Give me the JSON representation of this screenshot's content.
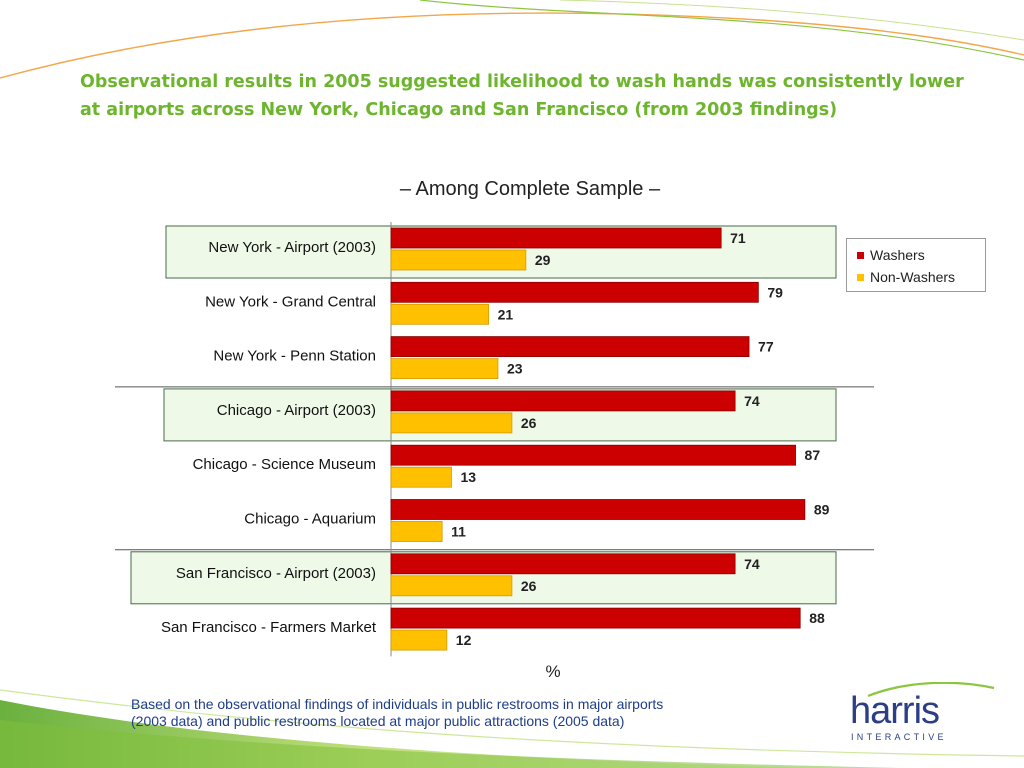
{
  "header": {
    "title": "Observational results in 2005 suggested likelihood to wash hands was consistently lower at airports across New York, Chicago and San Francisco (from 2003 findings)"
  },
  "chart_data": {
    "type": "bar",
    "orientation": "horizontal",
    "title": "– Among Complete Sample –",
    "xlabel": "%",
    "xlim": [
      0,
      100
    ],
    "grid": false,
    "legend_position": "right",
    "categories": [
      "New York - Airport (2003)",
      "New York - Grand Central",
      "New York - Penn Station",
      "Chicago - Airport (2003)",
      "Chicago - Science Museum",
      "Chicago - Aquarium",
      "San Francisco - Airport (2003)",
      "San Francisco - Farmers Market"
    ],
    "highlighted_categories": [
      0,
      3,
      6
    ],
    "series": [
      {
        "name": "Washers",
        "color": "#cc0000",
        "values": [
          71,
          79,
          77,
          74,
          87,
          89,
          74,
          88
        ]
      },
      {
        "name": "Non-Washers",
        "color": "#ffc000",
        "values": [
          29,
          21,
          23,
          26,
          13,
          11,
          26,
          12
        ]
      }
    ]
  },
  "footnote": {
    "line1": "Based on the observational findings of individuals in public restrooms in major airports",
    "line2": "(2003 data) and public restrooms located at major public attractions (2005 data)"
  },
  "logo": {
    "word": "harris",
    "sub": "INTERACTIVE"
  }
}
